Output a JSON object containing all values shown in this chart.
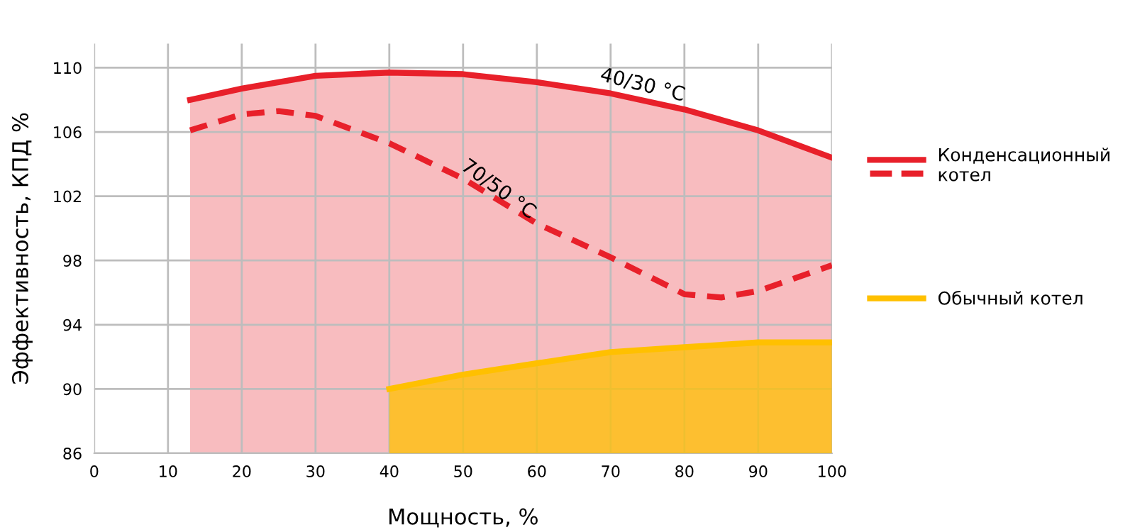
{
  "chart_data": {
    "type": "area",
    "xlabel": "Мощность, %",
    "ylabel": "Эффективность, КПД %",
    "xlim": [
      0,
      100
    ],
    "ylim": [
      86,
      111.5
    ],
    "xticks": [
      0,
      10,
      20,
      30,
      40,
      50,
      60,
      70,
      80,
      90,
      100
    ],
    "yticks": [
      86,
      90,
      94,
      98,
      102,
      106,
      110
    ],
    "grid": true,
    "legend": "right",
    "series": [
      {
        "name": "Конденсационный котел",
        "color": "#e8202a",
        "x": [
          13,
          20,
          30,
          40,
          50,
          60,
          70,
          80,
          90,
          100
        ],
        "values": [
          108.0,
          108.7,
          109.5,
          109.7,
          109.6,
          109.1,
          108.4,
          107.4,
          106.1,
          104.4
        ]
      },
      {
        "color": "#e8202a",
        "type": "line",
        "line_style": "dashed",
        "x": [
          13,
          20,
          25,
          30,
          40,
          50,
          55,
          60,
          70,
          80,
          85,
          90,
          100
        ],
        "values": [
          106.1,
          107.1,
          107.3,
          107.0,
          105.3,
          103.1,
          101.7,
          100.3,
          98.2,
          95.9,
          95.7,
          96.1,
          97.7
        ]
      },
      {
        "name": "Обычный котел",
        "color": "#ffc000",
        "type": "area",
        "x": [
          40,
          50,
          60,
          70,
          80,
          90,
          100
        ],
        "values": [
          90.0,
          90.9,
          91.6,
          92.3,
          92.6,
          92.9,
          92.9
        ]
      }
    ],
    "annotations": [
      "40/30 °C",
      "70/50 °C"
    ]
  }
}
